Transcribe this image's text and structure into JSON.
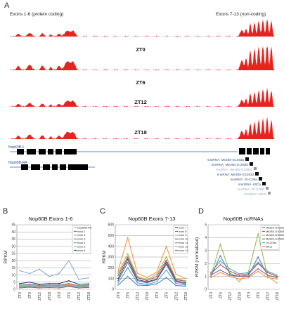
{
  "panel_a": {
    "letter": "A",
    "left_header": "Exons 1-6 (protein coding)",
    "right_header": "Exons 7-13 (non-coding)",
    "tracks": [
      {
        "label": "ZT0"
      },
      {
        "label": "ZT6"
      },
      {
        "label": "ZT12"
      },
      {
        "label": "ZT18"
      }
    ],
    "isoform_1": "Nop60B.1",
    "isoform_2": "Nop60B-RA",
    "snorna_labels": [
      {
        "text": "snoRNA: Me28S-G1083a",
        "shade": "dark"
      },
      {
        "text": "snoRNA: Me28S-G1083b",
        "shade": "dark"
      },
      {
        "text": "snoRNA: Me28S-G1083c",
        "shade": "light"
      },
      {
        "text": "snoRNA: Me28S-G1083d",
        "shade": "dark"
      },
      {
        "text": "snoRNA: Or-CD9a",
        "shade": "dark"
      },
      {
        "text": "snmRNA: 60Ca",
        "shade": "dark"
      },
      {
        "text": "snoRNA: Or-CD9b",
        "shade": "light"
      },
      {
        "text": "snmRNA: 60Cb",
        "shade": "light"
      }
    ]
  },
  "chart_data": [
    {
      "panel": "B",
      "type": "line",
      "title": "Nop60B Exons 1-6",
      "ylabel": "RPKM",
      "xlabel": "",
      "categories": [
        "ZT0",
        "ZT6",
        "ZT12",
        "ZT18",
        "ZT0",
        "ZT6",
        "ZT12",
        "ZT18"
      ],
      "ylim": [
        0,
        45
      ],
      "yticks": [
        0,
        5,
        10,
        15,
        20,
        25,
        30,
        35,
        40,
        45
      ],
      "grid": true,
      "legend": "top-right",
      "series": [
        {
          "name": "Nop60B-RA",
          "color": "#8eaad8",
          "values": [
            13,
            11,
            14,
            9,
            11,
            20,
            7,
            8
          ]
        },
        {
          "name": "exon 1",
          "color": "#c0504d",
          "values": [
            1,
            1.5,
            1,
            1.2,
            1,
            2,
            1,
            1.3
          ]
        },
        {
          "name": "exon 2",
          "color": "#9bbb59",
          "values": [
            2,
            2.5,
            2,
            2.5,
            2,
            3,
            2,
            2.2
          ]
        },
        {
          "name": "exon 3",
          "color": "#8064a2",
          "values": [
            3,
            3.5,
            2.8,
            3,
            3,
            4,
            2.5,
            3
          ]
        },
        {
          "name": "exon 4",
          "color": "#4bacc6",
          "values": [
            1.5,
            2,
            1.5,
            2,
            1.8,
            2.5,
            1.6,
            1.8
          ]
        },
        {
          "name": "exon 5",
          "color": "#f79646",
          "values": [
            2.5,
            3,
            2.2,
            2.6,
            2.4,
            3.4,
            2.3,
            2.6
          ]
        },
        {
          "name": "exon 6",
          "color": "#2c4d75",
          "values": [
            4,
            5,
            3.5,
            4,
            4,
            6,
            3.5,
            3.8
          ]
        }
      ]
    },
    {
      "panel": "C",
      "type": "line",
      "title": "Nop60B Exons 7-13",
      "ylabel": "RPKM",
      "xlabel": "",
      "categories": [
        "ZT0",
        "ZT6",
        "ZT12",
        "ZT18",
        "ZT0",
        "ZT6",
        "ZT12",
        "ZT18"
      ],
      "ylim": [
        0,
        600
      ],
      "yticks": [
        0,
        100,
        200,
        300,
        400,
        500,
        600
      ],
      "grid": true,
      "legend": "top-right",
      "series": [
        {
          "name": "exon 7",
          "color": "#2c4d75",
          "values": [
            100,
            280,
            90,
            70,
            95,
            250,
            80,
            60
          ]
        },
        {
          "name": "exon 8",
          "color": "#c0504d",
          "values": [
            130,
            300,
            110,
            80,
            120,
            270,
            90,
            75
          ]
        },
        {
          "name": "exon 9",
          "color": "#9bbb59",
          "values": [
            150,
            330,
            120,
            90,
            140,
            300,
            100,
            80
          ]
        },
        {
          "name": "exon 10",
          "color": "#8064a2",
          "values": [
            80,
            250,
            80,
            60,
            90,
            230,
            70,
            50
          ]
        },
        {
          "name": "exon 11",
          "color": "#4bacc6",
          "values": [
            60,
            200,
            60,
            45,
            70,
            180,
            55,
            40
          ]
        },
        {
          "name": "exon 12",
          "color": "#f79646",
          "values": [
            170,
            480,
            150,
            110,
            160,
            400,
            140,
            100
          ]
        },
        {
          "name": "exon 13",
          "color": "#4f81bd",
          "values": [
            40,
            120,
            40,
            35,
            50,
            110,
            35,
            30
          ]
        }
      ]
    },
    {
      "panel": "D",
      "type": "line",
      "title": "Nop60B ncRNAs",
      "ylabel": "RPKM (normalized)",
      "xlabel": "",
      "categories": [
        "ZT0",
        "ZT6",
        "ZT12",
        "ZT18",
        "ZT0",
        "ZT6",
        "ZT12",
        "ZT18"
      ],
      "ylim": [
        0,
        5
      ],
      "yticks": [
        0,
        1,
        2,
        3,
        4,
        5
      ],
      "grid": true,
      "legend": "top-right",
      "series": [
        {
          "name": "Me28S-G1083a",
          "color": "#4f81bd",
          "values": [
            1.0,
            2.6,
            1.2,
            1.0,
            1.1,
            2.5,
            1.1,
            0.9
          ]
        },
        {
          "name": "Me28S-G1083b",
          "color": "#c0504d",
          "values": [
            1.2,
            1.9,
            1.4,
            1.1,
            1.2,
            2.0,
            1.3,
            1.0
          ]
        },
        {
          "name": "Me28S-G1083c",
          "color": "#9bbb59",
          "values": [
            1.0,
            3.5,
            1.3,
            0.6,
            1.4,
            4.3,
            1.0,
            0.5
          ]
        },
        {
          "name": "Me28S-G1083d",
          "color": "#8064a2",
          "values": [
            1.1,
            1.5,
            1.1,
            1.0,
            1.0,
            1.6,
            1.1,
            0.9
          ]
        },
        {
          "name": "Or-CD9a",
          "color": "#4bacc6",
          "values": [
            1.3,
            2.2,
            1.6,
            1.2,
            1.3,
            2.1,
            1.4,
            1.1
          ]
        },
        {
          "name": "60Ca",
          "color": "#f79646",
          "values": [
            0.9,
            1.3,
            1.0,
            0.8,
            0.9,
            1.4,
            0.9,
            0.8
          ]
        }
      ]
    }
  ]
}
